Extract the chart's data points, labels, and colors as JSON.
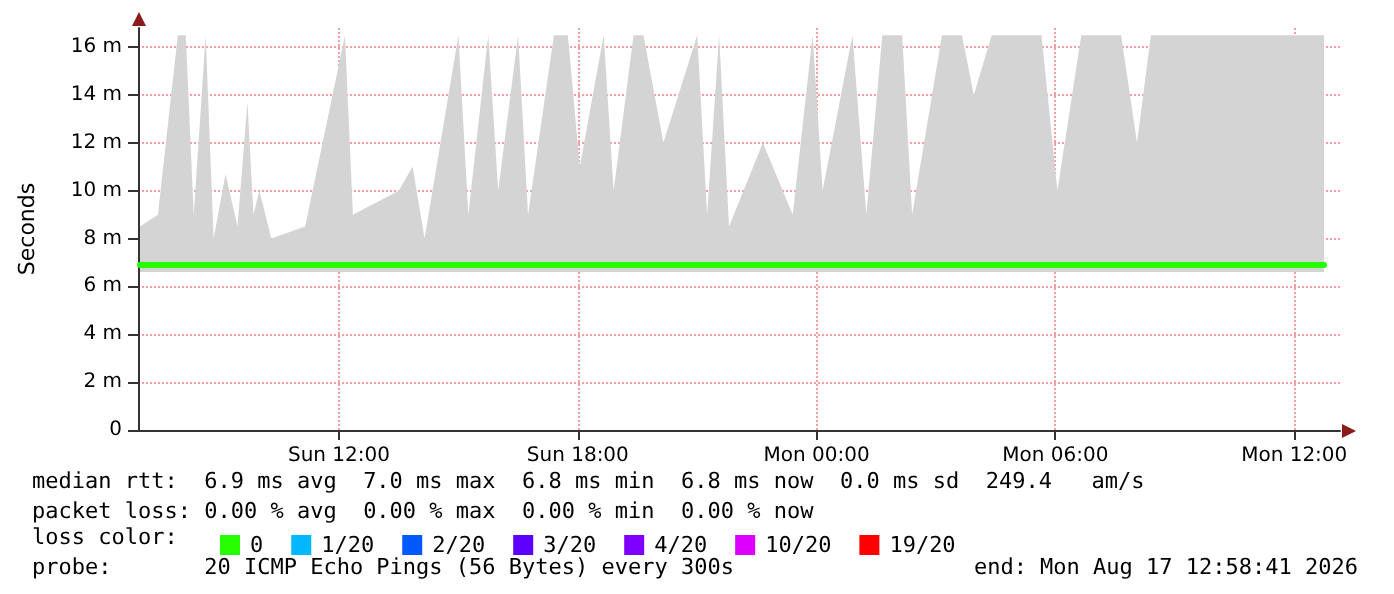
{
  "chart_data": {
    "type": "line",
    "ylabel": "Seconds",
    "x": [
      "2026-08-16T07:00",
      "2026-08-16T07:27",
      "2026-08-16T07:57",
      "2026-08-16T08:09",
      "2026-08-16T08:21",
      "2026-08-16T08:39",
      "2026-08-16T08:51",
      "2026-08-16T09:09",
      "2026-08-16T09:27",
      "2026-08-16T09:42",
      "2026-08-16T09:51",
      "2026-08-16T10:00",
      "2026-08-16T10:18",
      "2026-08-16T11:09",
      "2026-08-16T12:09",
      "2026-08-16T12:21",
      "2026-08-16T13:30",
      "2026-08-16T13:51",
      "2026-08-16T14:09",
      "2026-08-16T15:00",
      "2026-08-16T15:15",
      "2026-08-16T15:45",
      "2026-08-16T16:00",
      "2026-08-16T16:30",
      "2026-08-16T16:45",
      "2026-08-16T17:24",
      "2026-08-16T17:45",
      "2026-08-16T18:03",
      "2026-08-16T18:39",
      "2026-08-16T18:54",
      "2026-08-16T19:24",
      "2026-08-16T19:39",
      "2026-08-16T20:09",
      "2026-08-16T21:00",
      "2026-08-16T21:15",
      "2026-08-16T21:33",
      "2026-08-16T21:48",
      "2026-08-16T22:39",
      "2026-08-16T23:24",
      "2026-08-16T23:54",
      "2026-08-17T00:09",
      "2026-08-17T00:54",
      "2026-08-17T01:15",
      "2026-08-17T01:39",
      "2026-08-17T02:09",
      "2026-08-17T02:24",
      "2026-08-17T03:09",
      "2026-08-17T03:39",
      "2026-08-17T03:57",
      "2026-08-17T04:24",
      "2026-08-17T05:09",
      "2026-08-17T05:39",
      "2026-08-17T06:03",
      "2026-08-17T06:39",
      "2026-08-17T07:39",
      "2026-08-17T08:03",
      "2026-08-17T08:24",
      "2026-08-17T09:09",
      "2026-08-17T09:39",
      "2026-08-17T10:03",
      "2026-08-17T10:39",
      "2026-08-17T11:09",
      "2026-08-17T11:39",
      "2026-08-17T12:24",
      "2026-08-17T12:45"
    ],
    "series": [
      {
        "name": "0",
        "color": "#26ff00",
        "values": [
          6.9,
          6.9,
          6.9,
          6.9,
          6.9,
          6.9,
          6.9,
          6.9,
          6.9,
          6.9,
          6.9,
          6.9,
          6.9,
          6.9,
          6.9,
          6.9,
          6.9,
          6.9,
          6.9,
          6.9,
          6.9,
          6.9,
          6.9,
          6.9,
          6.9,
          6.9,
          6.9,
          6.9,
          6.9,
          6.9,
          6.9,
          6.9,
          6.9,
          6.9,
          6.9,
          6.9,
          6.9,
          6.9,
          6.9,
          6.9,
          6.9,
          6.9,
          6.9,
          6.9,
          6.9,
          6.9,
          6.9,
          6.9,
          6.9,
          6.9,
          6.9,
          6.9,
          6.9,
          6.9,
          6.9,
          6.9,
          6.9,
          6.9,
          6.9,
          6.9,
          6.9,
          6.9,
          6.9,
          6.9,
          6.9
        ],
        "lower": [
          6.6,
          6.6,
          6.6,
          6.6,
          6.6,
          6.6,
          6.6,
          6.6,
          6.6,
          6.6,
          6.6,
          6.6,
          6.6,
          6.6,
          6.6,
          6.6,
          6.6,
          6.6,
          6.6,
          6.6,
          6.6,
          6.6,
          6.6,
          6.6,
          6.6,
          6.6,
          6.6,
          6.6,
          6.6,
          6.6,
          6.6,
          6.6,
          6.6,
          6.6,
          6.6,
          6.6,
          6.6,
          6.6,
          6.6,
          6.6,
          6.6,
          6.6,
          6.6,
          6.6,
          6.6,
          6.6,
          6.6,
          6.6,
          6.6,
          6.6,
          6.6,
          6.6,
          6.6,
          6.6,
          6.6,
          6.6,
          6.6,
          6.6,
          6.6,
          6.6,
          6.6,
          6.6,
          6.6,
          6.6,
          6.6
        ],
        "upper": [
          8.5,
          9,
          16.5,
          16.5,
          9,
          16.5,
          8,
          10.7,
          8.5,
          13.7,
          9,
          10,
          8,
          8.5,
          16.5,
          9,
          10,
          11,
          8,
          16.5,
          9,
          16.5,
          10,
          16.5,
          9,
          16.5,
          16.5,
          11,
          16.5,
          10,
          16.5,
          16.5,
          12,
          16.5,
          9,
          16.5,
          8.5,
          12,
          9,
          16.5,
          10,
          16.5,
          9,
          16.5,
          16.5,
          9,
          16.5,
          16.5,
          14,
          16.5,
          16.5,
          16.5,
          10,
          16.5,
          16.5,
          12,
          16.5,
          16.5,
          16.5,
          16.5,
          16.5,
          16.5,
          16.5,
          16.5,
          16.5
        ]
      },
      {
        "name": "1/20",
        "color": "#00b8ff",
        "values": [
          null,
          null,
          null,
          null,
          null,
          null,
          null,
          null,
          null,
          null,
          null,
          null,
          null,
          null,
          null,
          null,
          null,
          null,
          null,
          null,
          null,
          null,
          null,
          null,
          null,
          null,
          null,
          null,
          null,
          null,
          null,
          null,
          null,
          null,
          null,
          null,
          null,
          null,
          null,
          null,
          null,
          null,
          null,
          null,
          null,
          null,
          null,
          null,
          null,
          null,
          null,
          null,
          null,
          null,
          null,
          null,
          null,
          null,
          null,
          null,
          null,
          null,
          null,
          null,
          null
        ]
      },
      {
        "name": "2/20",
        "color": "#0059ff",
        "values": [
          null,
          null,
          null,
          null,
          null,
          null,
          null,
          null,
          null,
          null,
          null,
          null,
          null,
          null,
          null,
          null,
          null,
          null,
          null,
          null,
          null,
          null,
          null,
          null,
          null,
          null,
          null,
          null,
          null,
          null,
          null,
          null,
          null,
          null,
          null,
          null,
          null,
          null,
          null,
          null,
          null,
          null,
          null,
          null,
          null,
          null,
          null,
          null,
          null,
          null,
          null,
          null,
          null,
          null,
          null,
          null,
          null,
          null,
          null,
          null,
          null,
          null,
          null,
          null,
          null
        ]
      },
      {
        "name": "3/20",
        "color": "#5e00ff",
        "values": [
          null,
          null,
          null,
          null,
          null,
          null,
          null,
          null,
          null,
          null,
          null,
          null,
          null,
          null,
          null,
          null,
          null,
          null,
          null,
          null,
          null,
          null,
          null,
          null,
          null,
          null,
          null,
          null,
          null,
          null,
          null,
          null,
          null,
          null,
          null,
          null,
          null,
          null,
          null,
          null,
          null,
          null,
          null,
          null,
          null,
          null,
          null,
          null,
          null,
          null,
          null,
          null,
          null,
          null,
          null,
          null,
          null,
          null,
          null,
          null,
          null,
          null,
          null,
          null,
          null
        ]
      },
      {
        "name": "4/20",
        "color": "#7e00ff",
        "values": [
          null,
          null,
          null,
          null,
          null,
          null,
          null,
          null,
          null,
          null,
          null,
          null,
          null,
          null,
          null,
          null,
          null,
          null,
          null,
          null,
          null,
          null,
          null,
          null,
          null,
          null,
          null,
          null,
          null,
          null,
          null,
          null,
          null,
          null,
          null,
          null,
          null,
          null,
          null,
          null,
          null,
          null,
          null,
          null,
          null,
          null,
          null,
          null,
          null,
          null,
          null,
          null,
          null,
          null,
          null,
          null,
          null,
          null,
          null,
          null,
          null,
          null,
          null,
          null,
          null
        ]
      },
      {
        "name": "10/20",
        "color": "#dd00ff",
        "values": [
          null,
          null,
          null,
          null,
          null,
          null,
          null,
          null,
          null,
          null,
          null,
          null,
          null,
          null,
          null,
          null,
          null,
          null,
          null,
          null,
          null,
          null,
          null,
          null,
          null,
          null,
          null,
          null,
          null,
          null,
          null,
          null,
          null,
          null,
          null,
          null,
          null,
          null,
          null,
          null,
          null,
          null,
          null,
          null,
          null,
          null,
          null,
          null,
          null,
          null,
          null,
          null,
          null,
          null,
          null,
          null,
          null,
          null,
          null,
          null,
          null,
          null,
          null,
          null,
          null
        ]
      },
      {
        "name": "19/20",
        "color": "#ff0000",
        "values": [
          null,
          null,
          null,
          null,
          null,
          null,
          null,
          null,
          null,
          null,
          null,
          null,
          null,
          null,
          null,
          null,
          null,
          null,
          null,
          null,
          null,
          null,
          null,
          null,
          null,
          null,
          null,
          null,
          null,
          null,
          null,
          null,
          null,
          null,
          null,
          null,
          null,
          null,
          null,
          null,
          null,
          null,
          null,
          null,
          null,
          null,
          null,
          null,
          null,
          null,
          null,
          null,
          null,
          null,
          null,
          null,
          null,
          null,
          null,
          null,
          null,
          null,
          null,
          null,
          null
        ]
      }
    ],
    "legend": "bottom left",
    "legend_title": "loss color:",
    "xlim": [
      "2026-08-16T06:57",
      "2026-08-17T13:09"
    ],
    "xticks": [
      {
        "value": "2026-08-16T12:00",
        "label": "Sun 12:00"
      },
      {
        "value": "2026-08-16T18:00",
        "label": "Sun 18:00"
      },
      {
        "value": "2026-08-17T00:00",
        "label": "Mon 00:00"
      },
      {
        "value": "2026-08-17T06:00",
        "label": "Mon 06:00"
      },
      {
        "value": "2026-08-17T12:00",
        "label": "Mon 12:00"
      }
    ],
    "ylim": [
      0,
      16.8
    ],
    "yticks": [
      0,
      {
        "value": 2,
        "label": "2 m"
      },
      {
        "value": 4,
        "label": "4 m"
      },
      {
        "value": 6,
        "label": "6 m"
      },
      {
        "value": 8,
        "label": "8 m"
      },
      {
        "value": 10,
        "label": "10 m"
      },
      {
        "value": 12,
        "label": "12 m"
      },
      {
        "value": 14,
        "label": "14 m"
      },
      {
        "value": 16,
        "label": "16 m"
      }
    ],
    "grid": true,
    "marker": "none",
    "line_style": "solid",
    "annotations": [
      "median rtt:  6.9 ms avg  7.0 ms max  6.8 ms min  6.8 ms now  0.0 ms sd  249.4   am/s",
      "packet loss: 0.00 % avg  0.00 % max  0.00 % min  0.00 % now",
      "probe:       20 ICMP Echo Pings (56 Bytes) every 300s",
      "end: Mon Aug 17 12:58:41 2026"
    ]
  }
}
